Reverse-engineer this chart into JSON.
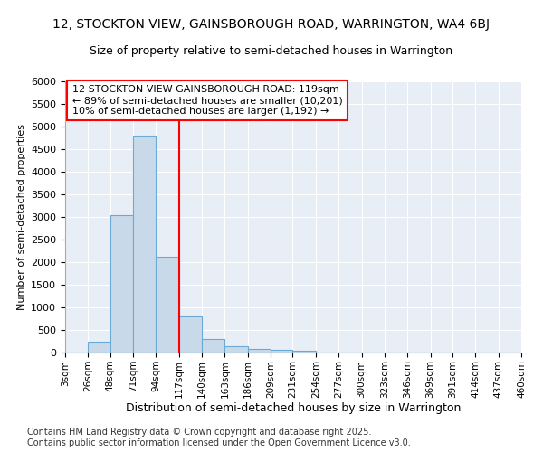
{
  "title": "12, STOCKTON VIEW, GAINSBOROUGH ROAD, WARRINGTON, WA4 6BJ",
  "subtitle": "Size of property relative to semi-detached houses in Warrington",
  "xlabel": "Distribution of semi-detached houses by size in Warrington",
  "ylabel": "Number of semi-detached properties",
  "bin_edges": [
    3,
    26,
    48,
    71,
    94,
    117,
    140,
    163,
    186,
    209,
    231,
    254,
    277,
    300,
    323,
    346,
    369,
    391,
    414,
    437,
    460
  ],
  "bar_heights": [
    0,
    245,
    3050,
    4800,
    2120,
    800,
    300,
    145,
    80,
    55,
    40,
    0,
    0,
    0,
    0,
    0,
    0,
    0,
    0,
    0
  ],
  "bar_color": "#c8daea",
  "bar_edge_color": "#6aaad4",
  "vline_x": 117,
  "vline_color": "red",
  "annotation_title": "12 STOCKTON VIEW GAINSBOROUGH ROAD: 119sqm",
  "annotation_line2": "← 89% of semi-detached houses are smaller (10,201)",
  "annotation_line3": "10% of semi-detached houses are larger (1,192) →",
  "ylim": [
    0,
    6000
  ],
  "yticks": [
    0,
    500,
    1000,
    1500,
    2000,
    2500,
    3000,
    3500,
    4000,
    4500,
    5000,
    5500,
    6000
  ],
  "bg_color": "#e8eef6",
  "grid_color": "#ffffff",
  "footer_line1": "Contains HM Land Registry data © Crown copyright and database right 2025.",
  "footer_line2": "Contains public sector information licensed under the Open Government Licence v3.0.",
  "title_fontsize": 10,
  "subtitle_fontsize": 9,
  "xlabel_fontsize": 9,
  "ylabel_fontsize": 8,
  "ytick_fontsize": 8,
  "xtick_fontsize": 7.5,
  "annotation_fontsize": 8,
  "footer_fontsize": 7
}
